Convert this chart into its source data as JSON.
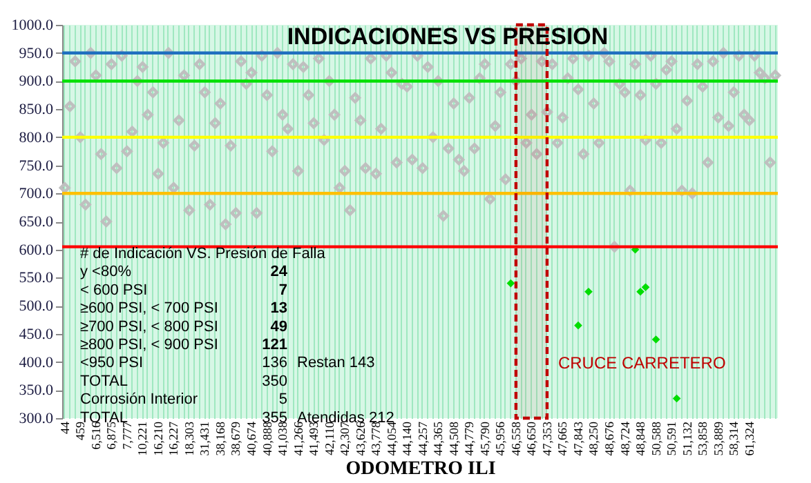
{
  "chart_data": {
    "type": "scatter",
    "title": "INDICACIONES VS PRESION",
    "xlabel": "ODOMETRO ILI",
    "categories": [
      "44",
      null,
      null,
      "459",
      null,
      null,
      "6,516",
      null,
      null,
      "6,875",
      null,
      null,
      "7,777",
      null,
      null,
      "10,221",
      null,
      null,
      "16,210",
      null,
      null,
      "16,227",
      null,
      null,
      "18,303",
      null,
      null,
      "31,431",
      null,
      null,
      "38,168",
      null,
      null,
      "38,679",
      null,
      null,
      "40,674",
      null,
      null,
      "40,888",
      null,
      null,
      "41,038",
      null,
      null,
      "41,266",
      null,
      null,
      "41,493",
      null,
      null,
      "42,110",
      null,
      null,
      "42,307",
      null,
      null,
      "43,626",
      null,
      null,
      "43,778",
      null,
      null,
      "44,054",
      null,
      null,
      "44,140",
      null,
      null,
      "44,257",
      null,
      null,
      "44,365",
      null,
      null,
      "44,508",
      null,
      null,
      "44,779",
      null,
      null,
      "45,790",
      null,
      null,
      "45,956",
      null,
      null,
      "46,558",
      null,
      null,
      "46,650",
      null,
      null,
      "47,353",
      null,
      null,
      "47,665",
      null,
      null,
      "47,843",
      null,
      null,
      "48,250",
      null,
      null,
      "48,676",
      null,
      null,
      "48,724",
      null,
      null,
      "48,848",
      null,
      null,
      "50,588",
      null,
      null,
      "50,591",
      null,
      null,
      "51,132",
      null,
      null,
      "53,858",
      null,
      null,
      "53,889",
      null,
      null,
      "58,314",
      null,
      null,
      "61,324",
      null,
      null,
      null,
      null,
      null
    ],
    "series": [
      {
        "color": "#bfbfbf",
        "marker": "diamond",
        "values": [
          710,
          855,
          935,
          800,
          680,
          950,
          910,
          770,
          650,
          930,
          745,
          945,
          775,
          810,
          900,
          925,
          840,
          880,
          735,
          790,
          950,
          710,
          830,
          910,
          670,
          785,
          930,
          880,
          680,
          825,
          860,
          645,
          785,
          665,
          935,
          895,
          915,
          665,
          945,
          875,
          775,
          950,
          840,
          815,
          930,
          740,
          925,
          875,
          825,
          940,
          795,
          900,
          840,
          710,
          740,
          670,
          870,
          830,
          745,
          940,
          735,
          815,
          945,
          915,
          755,
          895,
          890,
          760,
          945,
          745,
          925,
          800,
          900,
          660,
          780,
          860,
          760,
          740,
          870,
          780,
          905,
          930,
          690,
          820,
          880,
          725,
          930,
          900,
          940,
          790,
          840,
          770,
          935,
          845,
          930,
          790,
          835,
          905,
          940,
          885,
          770,
          945,
          860,
          790,
          950,
          935,
          605,
          895,
          880,
          705,
          930,
          875,
          795,
          945,
          895,
          790,
          920,
          935,
          815,
          705,
          865,
          700,
          930,
          890,
          755,
          935,
          835,
          950,
          820,
          880,
          945,
          840,
          830,
          945,
          915,
          905,
          755,
          910
        ]
      },
      {
        "color": "#00dd00",
        "marker": "diamond_filled",
        "values": [
          null,
          null,
          null,
          null,
          null,
          null,
          null,
          null,
          null,
          null,
          null,
          null,
          null,
          null,
          null,
          null,
          null,
          null,
          null,
          null,
          null,
          null,
          null,
          null,
          null,
          null,
          null,
          null,
          null,
          null,
          null,
          null,
          null,
          null,
          null,
          null,
          null,
          null,
          null,
          null,
          null,
          null,
          null,
          null,
          null,
          null,
          null,
          null,
          null,
          null,
          null,
          null,
          null,
          null,
          null,
          null,
          null,
          null,
          null,
          null,
          null,
          null,
          null,
          null,
          null,
          null,
          null,
          null,
          null,
          null,
          null,
          null,
          null,
          null,
          null,
          null,
          null,
          null,
          null,
          null,
          null,
          null,
          null,
          null,
          null,
          null,
          540,
          null,
          null,
          null,
          null,
          null,
          null,
          null,
          null,
          null,
          null,
          null,
          null,
          465,
          null,
          525,
          null,
          null,
          null,
          null,
          null,
          null,
          null,
          null,
          600,
          525,
          533,
          null,
          440,
          null,
          null,
          null,
          335,
          null,
          null,
          null,
          null,
          null,
          null,
          null,
          null,
          null,
          null,
          null,
          null,
          null,
          null,
          null,
          null,
          null,
          null,
          null
        ]
      }
    ],
    "ylim": [
      300,
      1000
    ],
    "yticks": [
      {
        "value": 300,
        "label": "300.0"
      },
      {
        "value": 350,
        "label": "350.0"
      },
      {
        "value": 400,
        "label": "400.0"
      },
      {
        "value": 450,
        "label": "450.0"
      },
      {
        "value": 500,
        "label": "500.0"
      },
      {
        "value": 550,
        "label": "550.0"
      },
      {
        "value": 600,
        "label": "600.0"
      },
      {
        "value": 650,
        "label": "650.0"
      },
      {
        "value": 700,
        "label": "700.0"
      },
      {
        "value": 750,
        "label": "750.0"
      },
      {
        "value": 800,
        "label": "800.0"
      },
      {
        "value": 850,
        "label": "850.0"
      },
      {
        "value": 900,
        "label": "900.0"
      },
      {
        "value": 950,
        "label": "950.0"
      },
      {
        "value": 1000,
        "label": "1000.0"
      }
    ],
    "grid": "x",
    "ref_lines": [
      {
        "axis": "y",
        "value": 950,
        "color": "#1f6fbf"
      },
      {
        "axis": "y",
        "value": 900,
        "color": "#00e000"
      },
      {
        "axis": "y",
        "value": 800,
        "color": "#ffff00"
      },
      {
        "axis": "y",
        "value": 700,
        "color": "#ffc000"
      },
      {
        "axis": "y",
        "value": 605,
        "color": "#ff0000"
      }
    ],
    "bands": [
      {
        "axis": "x",
        "from": "46,558",
        "to": "47,353",
        "label": "CRUCE CARRETERO",
        "color": "#c00000"
      }
    ],
    "annotations": [
      "# de Indicación VS. Presión de Falla",
      "y  <80%",
      "24",
      "< 600 PSI",
      "7",
      "≥600 PSI, < 700 PSI",
      "13",
      "≥700 PSI, < 800 PSI",
      "49",
      "≥800 PSI, < 900 PSI",
      "121",
      "<950 PSI",
      "136",
      "Restan 143",
      "TOTAL",
      "350",
      "Corrosión Interior",
      "5",
      "TOTAL",
      "355",
      "Atendidas 212"
    ]
  }
}
